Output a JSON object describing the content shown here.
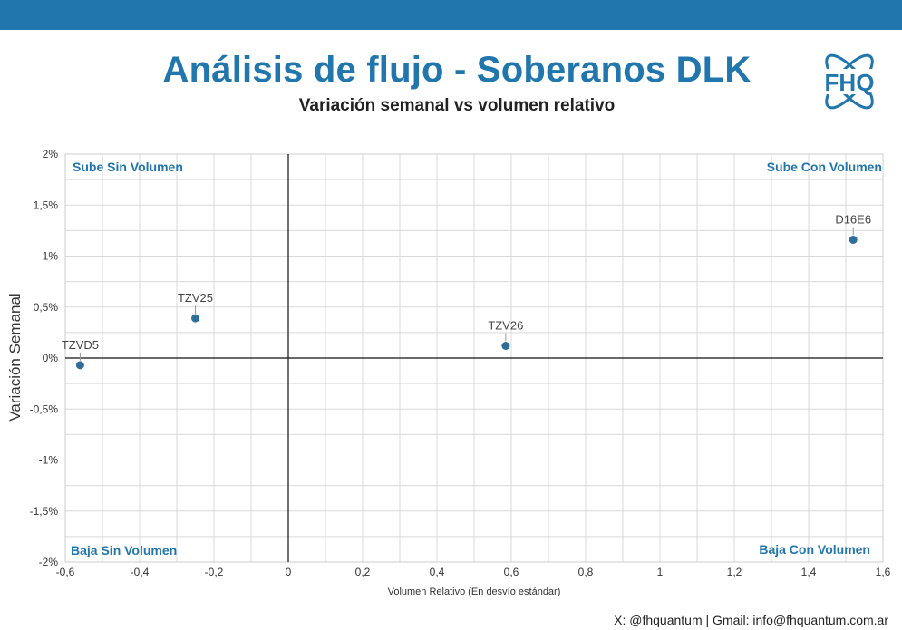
{
  "header": {
    "title": "Análisis de flujo - Soberanos DLK",
    "subtitle": "Variación semanal vs volumen relativo"
  },
  "logo": {
    "text": "FHQ",
    "icon": "atom-logo-icon"
  },
  "footer": {
    "text": "X: @fhquantum | Gmail: info@fhquantum.com.ar"
  },
  "colors": {
    "accent": "#2176ae",
    "point": "#2f6e9a",
    "grid": "#d9d9d9"
  },
  "chart_data": {
    "type": "scatter",
    "xlabel": "Volumen Relativo (En desvío estándar)",
    "ylabel": "Variación Semanal",
    "xlim": [
      -0.6,
      1.6
    ],
    "ylim": [
      -2,
      2
    ],
    "y_unit": "%",
    "grid": true,
    "x_ticks": [
      -0.6,
      -0.4,
      -0.2,
      0,
      0.2,
      0.4,
      0.6,
      0.8,
      1,
      1.2,
      1.4,
      1.6
    ],
    "x_tick_labels": [
      "-0,6",
      "-0,4",
      "-0,2",
      "0",
      "0,2",
      "0,4",
      "0,6",
      "0,8",
      "1",
      "1,2",
      "1,4",
      "1,6"
    ],
    "y_ticks": [
      2,
      1.5,
      1,
      0.5,
      0,
      -0.5,
      -1,
      -1.5,
      -2
    ],
    "y_tick_labels": [
      "2%",
      "1,5%",
      "1%",
      "0,5%",
      "0%",
      "-0,5%",
      "-1%",
      "-1,5%",
      "-2%"
    ],
    "quadrants": {
      "top_left": "Sube Sin Volumen",
      "top_right": "Sube Con Volumen",
      "bottom_left": "Baja Sin Volumen",
      "bottom_right": "Baja Con Volumen"
    },
    "points": [
      {
        "label": "TZVD5",
        "x": -0.56,
        "y": -0.07
      },
      {
        "label": "TZV25",
        "x": -0.25,
        "y": 0.39
      },
      {
        "label": "TZV26",
        "x": 0.585,
        "y": 0.12
      },
      {
        "label": "D16E6",
        "x": 1.52,
        "y": 1.16
      }
    ]
  }
}
